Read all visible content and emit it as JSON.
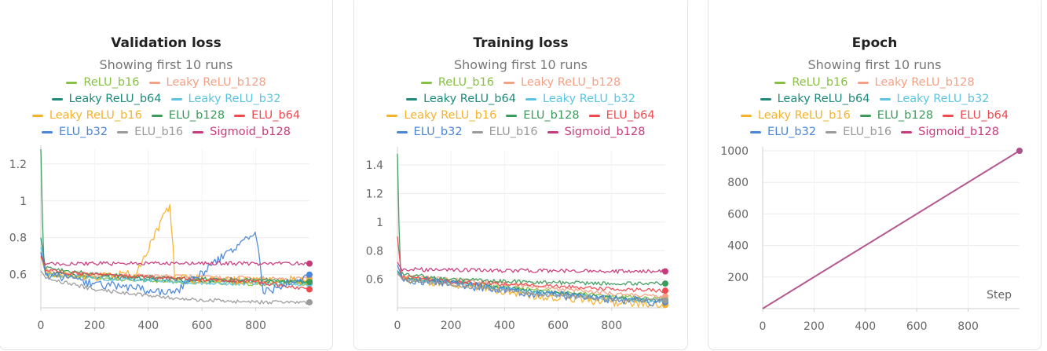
{
  "panels": [
    {
      "title": "Validation loss",
      "subtitle": "Showing first 10 runs"
    },
    {
      "title": "Training loss",
      "subtitle": "Showing first 10 runs"
    },
    {
      "title": "Epoch",
      "subtitle": "Showing first 10 runs"
    }
  ],
  "legend_rows": [
    [
      {
        "label": "ReLU_b16",
        "color": "#86c142"
      },
      {
        "label": "Leaky ReLU_b128",
        "color": "#f3a184"
      }
    ],
    [
      {
        "label": "Leaky ReLU_b64",
        "color": "#1e8a7a"
      },
      {
        "label": "Leaky ReLU_b32",
        "color": "#5bc4e0"
      }
    ],
    [
      {
        "label": "Leaky ReLU_b16",
        "color": "#f5b32d"
      },
      {
        "label": "ELU_b128",
        "color": "#3a9b5a"
      },
      {
        "label": "ELU_b64",
        "color": "#ef4a50"
      }
    ],
    [
      {
        "label": "ELU_b32",
        "color": "#4a86d9"
      },
      {
        "label": "ELU_b16",
        "color": "#9a9a9a"
      },
      {
        "label": "Sigmoid_b128",
        "color": "#c73a7c"
      }
    ]
  ],
  "chart_data": [
    {
      "type": "line",
      "title": "Validation loss",
      "subtitle": "Showing first 10 runs",
      "xlabel": "",
      "ylabel": "",
      "xlim": [
        0,
        1000
      ],
      "ylim": [
        0.42,
        1.28
      ],
      "xticks": [
        0,
        200,
        400,
        600,
        800
      ],
      "yticks": [
        0.6,
        0.8,
        1,
        1.2
      ],
      "ytick_labels": [
        "0.6",
        "0.8",
        "1",
        "1.2"
      ],
      "grid": true,
      "series": [
        {
          "name": "ReLU_b16",
          "color": "#86c142",
          "points": [
            [
              0,
              0.7
            ],
            [
              20,
              0.6
            ],
            [
              200,
              0.58
            ],
            [
              500,
              0.56
            ],
            [
              800,
              0.55
            ],
            [
              1000,
              0.55
            ]
          ]
        },
        {
          "name": "Leaky ReLU_b128",
          "color": "#f3a184",
          "points": [
            [
              0,
              0.72
            ],
            [
              20,
              0.62
            ],
            [
              200,
              0.6
            ],
            [
              500,
              0.59
            ],
            [
              800,
              0.58
            ],
            [
              1000,
              0.58
            ]
          ]
        },
        {
          "name": "Leaky ReLU_b64",
          "color": "#1e8a7a",
          "points": [
            [
              0,
              0.8
            ],
            [
              20,
              0.61
            ],
            [
              200,
              0.59
            ],
            [
              500,
              0.57
            ],
            [
              800,
              0.56
            ],
            [
              1000,
              0.56
            ]
          ]
        },
        {
          "name": "Leaky ReLU_b32",
          "color": "#5bc4e0",
          "points": [
            [
              0,
              0.75
            ],
            [
              20,
              0.6
            ],
            [
              200,
              0.58
            ],
            [
              500,
              0.56
            ],
            [
              800,
              0.55
            ],
            [
              1000,
              0.55
            ]
          ]
        },
        {
          "name": "Leaky ReLU_b16",
          "color": "#f5b32d",
          "points": [
            [
              0,
              0.7
            ],
            [
              20,
              0.6
            ],
            [
              200,
              0.59
            ],
            [
              350,
              0.6
            ],
            [
              480,
              0.98
            ],
            [
              500,
              0.58
            ],
            [
              700,
              0.57
            ],
            [
              1000,
              0.57
            ]
          ]
        },
        {
          "name": "ELU_b128",
          "color": "#3a9b5a",
          "points": [
            [
              0,
              1.28
            ],
            [
              10,
              0.64
            ],
            [
              200,
              0.6
            ],
            [
              500,
              0.58
            ],
            [
              800,
              0.57
            ],
            [
              1000,
              0.56
            ]
          ]
        },
        {
          "name": "ELU_b64",
          "color": "#ef4a50",
          "points": [
            [
              0,
              0.72
            ],
            [
              20,
              0.62
            ],
            [
              200,
              0.6
            ],
            [
              500,
              0.58
            ],
            [
              800,
              0.56
            ],
            [
              1000,
              0.52
            ]
          ]
        },
        {
          "name": "ELU_b32",
          "color": "#4a86d9",
          "points": [
            [
              0,
              0.72
            ],
            [
              20,
              0.6
            ],
            [
              200,
              0.55
            ],
            [
              500,
              0.5
            ],
            [
              800,
              0.83
            ],
            [
              830,
              0.5
            ],
            [
              1000,
              0.6
            ]
          ]
        },
        {
          "name": "ELU_b16",
          "color": "#9a9a9a",
          "points": [
            [
              0,
              0.62
            ],
            [
              20,
              0.58
            ],
            [
              200,
              0.52
            ],
            [
              500,
              0.47
            ],
            [
              800,
              0.45
            ],
            [
              1000,
              0.45
            ]
          ]
        },
        {
          "name": "Sigmoid_b128",
          "color": "#c73a7c",
          "points": [
            [
              0,
              0.7
            ],
            [
              15,
              0.66
            ],
            [
              200,
              0.66
            ],
            [
              500,
              0.66
            ],
            [
              800,
              0.66
            ],
            [
              1000,
              0.66
            ]
          ]
        }
      ]
    },
    {
      "type": "line",
      "title": "Training loss",
      "subtitle": "Showing first 10 runs",
      "xlabel": "",
      "ylabel": "",
      "xlim": [
        0,
        1000
      ],
      "ylim": [
        0.4,
        1.5
      ],
      "xticks": [
        0,
        200,
        400,
        600,
        800
      ],
      "yticks": [
        0.6,
        0.8,
        1,
        1.2,
        1.4
      ],
      "ytick_labels": [
        "0.6",
        "0.8",
        "1",
        "1.2",
        "1.4"
      ],
      "grid": true,
      "series": [
        {
          "name": "ReLU_b16",
          "color": "#86c142",
          "points": [
            [
              0,
              0.65
            ],
            [
              20,
              0.6
            ],
            [
              200,
              0.58
            ],
            [
              500,
              0.53
            ],
            [
              800,
              0.48
            ],
            [
              1000,
              0.46
            ]
          ]
        },
        {
          "name": "Leaky ReLU_b128",
          "color": "#f3a184",
          "points": [
            [
              0,
              0.66
            ],
            [
              20,
              0.62
            ],
            [
              200,
              0.6
            ],
            [
              500,
              0.55
            ],
            [
              800,
              0.5
            ],
            [
              1000,
              0.48
            ]
          ]
        },
        {
          "name": "Leaky ReLU_b64",
          "color": "#1e8a7a",
          "points": [
            [
              0,
              0.66
            ],
            [
              20,
              0.6
            ],
            [
              200,
              0.58
            ],
            [
              500,
              0.52
            ],
            [
              800,
              0.47
            ],
            [
              1000,
              0.45
            ]
          ]
        },
        {
          "name": "Leaky ReLU_b32",
          "color": "#5bc4e0",
          "points": [
            [
              0,
              0.65
            ],
            [
              20,
              0.6
            ],
            [
              200,
              0.58
            ],
            [
              500,
              0.51
            ],
            [
              800,
              0.46
            ],
            [
              1000,
              0.44
            ]
          ]
        },
        {
          "name": "Leaky ReLU_b16",
          "color": "#f5b32d",
          "points": [
            [
              0,
              0.64
            ],
            [
              20,
              0.6
            ],
            [
              200,
              0.57
            ],
            [
              500,
              0.49
            ],
            [
              800,
              0.44
            ],
            [
              1000,
              0.42
            ]
          ]
        },
        {
          "name": "ELU_b128",
          "color": "#3a9b5a",
          "points": [
            [
              0,
              1.48
            ],
            [
              10,
              0.64
            ],
            [
              200,
              0.6
            ],
            [
              500,
              0.58
            ],
            [
              800,
              0.57
            ],
            [
              1000,
              0.57
            ]
          ]
        },
        {
          "name": "ELU_b64",
          "color": "#ef4a50",
          "points": [
            [
              0,
              0.9
            ],
            [
              15,
              0.62
            ],
            [
              200,
              0.58
            ],
            [
              500,
              0.56
            ],
            [
              800,
              0.53
            ],
            [
              1000,
              0.52
            ]
          ]
        },
        {
          "name": "ELU_b32",
          "color": "#4a86d9",
          "points": [
            [
              0,
              0.7
            ],
            [
              20,
              0.6
            ],
            [
              200,
              0.57
            ],
            [
              500,
              0.5
            ],
            [
              800,
              0.46
            ],
            [
              1000,
              0.44
            ]
          ]
        },
        {
          "name": "ELU_b16",
          "color": "#9a9a9a",
          "points": [
            [
              0,
              0.64
            ],
            [
              20,
              0.6
            ],
            [
              200,
              0.56
            ],
            [
              500,
              0.5
            ],
            [
              800,
              0.46
            ],
            [
              1000,
              0.45
            ]
          ]
        },
        {
          "name": "Sigmoid_b128",
          "color": "#c73a7c",
          "points": [
            [
              0,
              0.72
            ],
            [
              15,
              0.67
            ],
            [
              200,
              0.665
            ],
            [
              500,
              0.66
            ],
            [
              800,
              0.655
            ],
            [
              1000,
              0.655
            ]
          ]
        }
      ]
    },
    {
      "type": "line",
      "title": "Epoch",
      "subtitle": "Showing first 10 runs",
      "xlabel": "Step",
      "ylabel": "",
      "xlim": [
        0,
        1000
      ],
      "ylim": [
        0,
        1000
      ],
      "xticks": [
        0,
        200,
        400,
        600,
        800
      ],
      "yticks": [
        200,
        400,
        600,
        800,
        1000
      ],
      "ytick_labels": [
        "200",
        "400",
        "600",
        "800",
        "1000"
      ],
      "grid": true,
      "series": [
        {
          "name": "Sigmoid_b128",
          "color": "#b0508a",
          "points": [
            [
              0,
              0
            ],
            [
              1000,
              1000
            ]
          ]
        }
      ]
    }
  ]
}
